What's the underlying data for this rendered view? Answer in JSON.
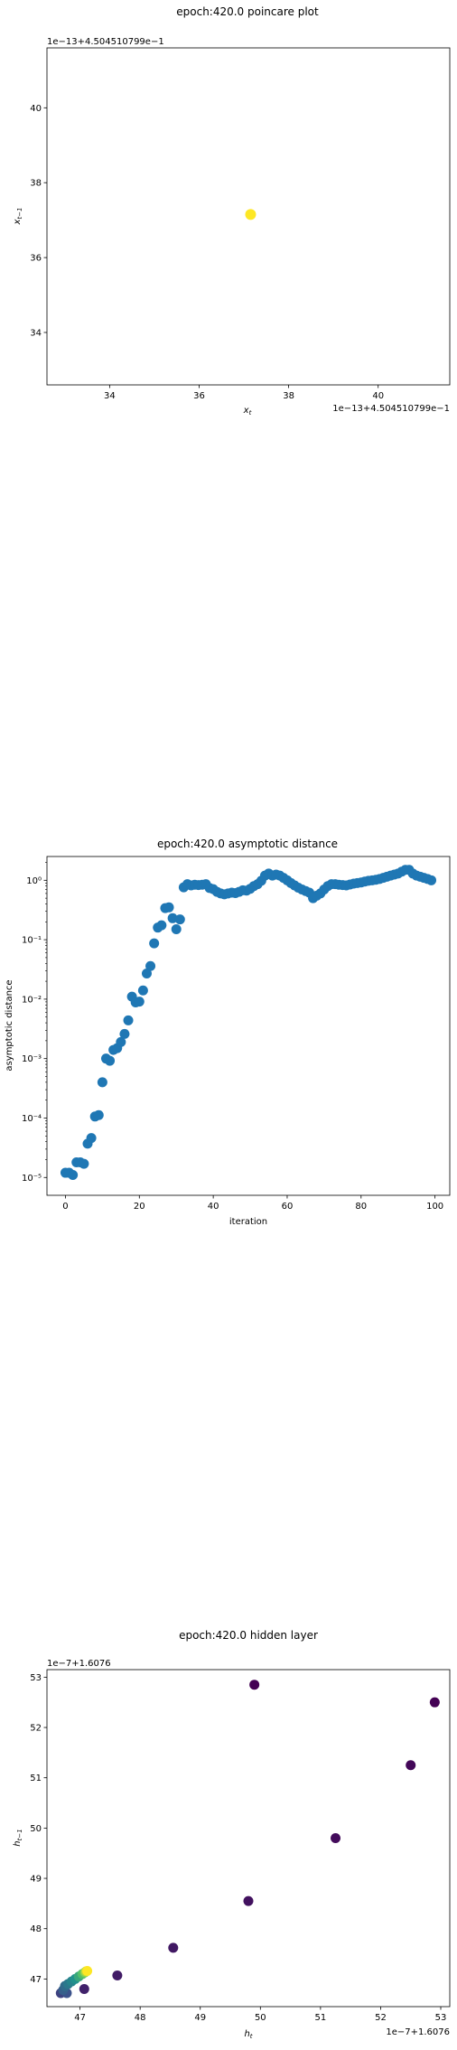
{
  "chart_data": [
    {
      "type": "scatter",
      "title": "epoch:420.0 poincare plot",
      "xlabel": "x_t",
      "ylabel": "x_{t−1}",
      "x_offset_text": "1e−13+4.504510799e−1",
      "y_offset_text": "1e−13+4.504510799e−1",
      "xlim": [
        32.6,
        41.6
      ],
      "ylim": [
        32.6,
        41.6
      ],
      "xticks": [
        34,
        36,
        38,
        40
      ],
      "yticks": [
        34,
        36,
        38,
        40
      ],
      "points": [
        [
          37.15,
          37.15
        ]
      ],
      "point_color": "#fde725",
      "grid": false
    },
    {
      "type": "scatter",
      "title": "epoch:420.0 asymptotic distance",
      "xlabel": "iteration",
      "ylabel": "asymptotic distance",
      "xlim": [
        -5,
        104
      ],
      "ylim_exp": [
        -5.3,
        0.4
      ],
      "yscale": "log",
      "xticks": [
        0,
        20,
        40,
        60,
        80,
        100
      ],
      "yticks": [
        {
          "exp": -5,
          "label": "10⁻⁵"
        },
        {
          "exp": -4,
          "label": "10⁻⁴"
        },
        {
          "exp": -3,
          "label": "10⁻³"
        },
        {
          "exp": -2,
          "label": "10⁻²"
        },
        {
          "exp": -1,
          "label": "10⁻¹"
        },
        {
          "exp": 0,
          "label": "10⁰"
        }
      ],
      "y": [
        1.2e-05,
        1.2e-05,
        1.1e-05,
        1.8e-05,
        1.8e-05,
        1.7e-05,
        3.7e-05,
        4.6e-05,
        0.000106,
        0.000112,
        0.0004,
        0.001,
        0.00092,
        0.0014,
        0.0015,
        0.0019,
        0.0026,
        0.0044,
        0.011,
        0.0088,
        0.0091,
        0.014,
        0.027,
        0.036,
        0.087,
        0.16,
        0.175,
        0.34,
        0.35,
        0.23,
        0.15,
        0.22,
        0.76,
        0.86,
        0.82,
        0.84,
        0.83,
        0.84,
        0.86,
        0.74,
        0.71,
        0.64,
        0.6,
        0.58,
        0.6,
        0.62,
        0.61,
        0.64,
        0.68,
        0.67,
        0.72,
        0.8,
        0.86,
        0.98,
        1.2,
        1.3,
        1.2,
        1.25,
        1.2,
        1.1,
        1.0,
        0.9,
        0.82,
        0.75,
        0.7,
        0.66,
        0.62,
        0.5,
        0.55,
        0.6,
        0.7,
        0.8,
        0.86,
        0.86,
        0.84,
        0.83,
        0.82,
        0.85,
        0.88,
        0.9,
        0.92,
        0.95,
        0.98,
        1.0,
        1.02,
        1.05,
        1.1,
        1.15,
        1.2,
        1.25,
        1.3,
        1.4,
        1.5,
        1.5,
        1.3,
        1.2,
        1.15,
        1.1,
        1.05,
        1.0
      ],
      "point_color": "#1f77b4",
      "grid": false
    },
    {
      "type": "scatter",
      "title": "epoch:420.0 hidden layer",
      "xlabel": "h_t",
      "ylabel": "h_{t−1}",
      "x_offset_text": "1e−7+1.6076",
      "y_offset_text": "1e−7+1.6076",
      "xlim": [
        46.45,
        53.15
      ],
      "ylim": [
        46.45,
        53.15
      ],
      "xticks": [
        47,
        48,
        49,
        50,
        51,
        52,
        53
      ],
      "yticks": [
        47,
        48,
        49,
        50,
        51,
        52,
        53
      ],
      "points": [
        {
          "x": 52.9,
          "y": 52.5,
          "c": 0.0
        },
        {
          "x": 49.9,
          "y": 52.85,
          "c": 0.0
        },
        {
          "x": 52.5,
          "y": 51.25,
          "c": 0.02
        },
        {
          "x": 51.25,
          "y": 49.8,
          "c": 0.03
        },
        {
          "x": 49.8,
          "y": 48.55,
          "c": 0.05
        },
        {
          "x": 48.55,
          "y": 47.62,
          "c": 0.07
        },
        {
          "x": 47.62,
          "y": 47.07,
          "c": 0.08
        },
        {
          "x": 47.07,
          "y": 46.8,
          "c": 0.1
        },
        {
          "x": 46.68,
          "y": 46.72,
          "c": 0.2
        },
        {
          "x": 46.78,
          "y": 46.72,
          "c": 0.25
        },
        {
          "x": 46.72,
          "y": 46.78,
          "c": 0.3
        },
        {
          "x": 46.75,
          "y": 46.86,
          "c": 0.35
        },
        {
          "x": 46.8,
          "y": 46.9,
          "c": 0.4
        },
        {
          "x": 46.86,
          "y": 46.95,
          "c": 0.45
        },
        {
          "x": 46.92,
          "y": 47.0,
          "c": 0.5
        },
        {
          "x": 46.98,
          "y": 47.05,
          "c": 0.6
        },
        {
          "x": 47.04,
          "y": 47.1,
          "c": 0.7
        },
        {
          "x": 47.08,
          "y": 47.13,
          "c": 0.8
        },
        {
          "x": 47.1,
          "y": 47.15,
          "c": 0.9
        },
        {
          "x": 47.12,
          "y": 47.16,
          "c": 1.0
        }
      ],
      "colormap": "viridis",
      "grid": false
    }
  ]
}
